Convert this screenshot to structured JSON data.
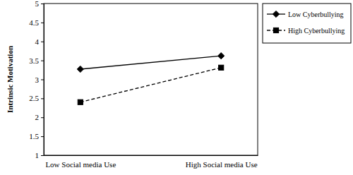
{
  "chart_data": {
    "type": "line",
    "y_label": "Intrinsic Motivation",
    "categories": [
      "Low Social media Use",
      "High Social media Use"
    ],
    "series": [
      {
        "name": "Low Cyberbullying",
        "color": "#000000",
        "marker": "diamond",
        "line_style": "solid",
        "values": [
          3.27,
          3.62
        ]
      },
      {
        "name": "High Cyberbullying",
        "color": "#000000",
        "marker": "square",
        "line_style": "dashed",
        "values": [
          2.4,
          3.31
        ]
      }
    ],
    "ylim": [
      1,
      5
    ],
    "yticks": [
      1,
      1.5,
      2,
      2.5,
      3,
      3.5,
      4,
      4.5,
      5
    ],
    "grid": false,
    "legend": "right"
  }
}
